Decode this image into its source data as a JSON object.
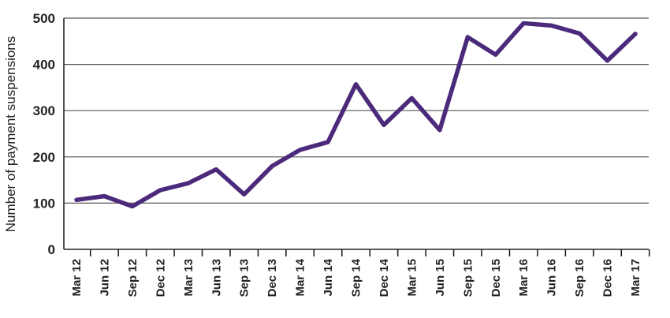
{
  "chart_data": {
    "type": "line",
    "ylabel": "Number of payment suspensions",
    "xlabel": "",
    "ylim": [
      0,
      500
    ],
    "yticks": [
      0,
      100,
      200,
      300,
      400,
      500
    ],
    "grid": true,
    "legend": "none",
    "colors": {
      "series": "#4b2a7b",
      "grid": "#555555"
    },
    "categories": [
      "Mar 12",
      "Jun 12",
      "Sep 12",
      "Dec 12",
      "Mar 13",
      "Jun 13",
      "Sep 13",
      "Dec 13",
      "Mar 14",
      "Jun 14",
      "Sep 14",
      "Dec 14",
      "Mar 15",
      "Jun 15",
      "Sep 15",
      "Dec 15",
      "Mar 16",
      "Jun 16",
      "Sep 16",
      "Dec 16",
      "Mar 17"
    ],
    "series": [
      {
        "values": [
          107,
          115,
          93,
          128,
          143,
          173,
          119,
          180,
          215,
          232,
          357,
          269,
          327,
          258,
          459,
          421,
          489,
          484,
          467,
          408,
          466
        ]
      }
    ]
  }
}
